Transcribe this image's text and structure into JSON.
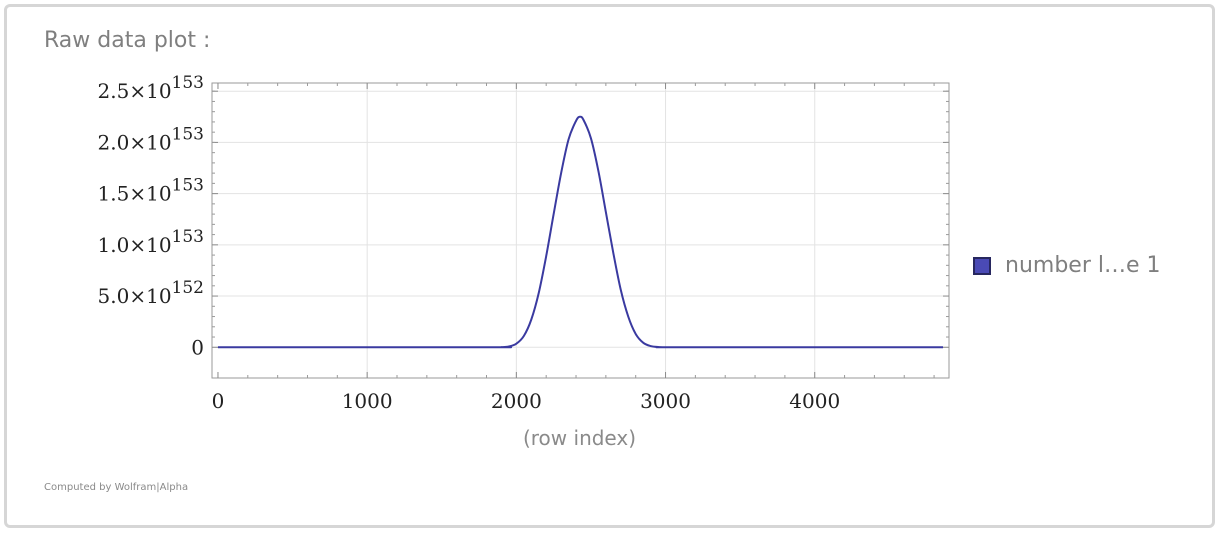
{
  "pod": {
    "title": "Raw data plot :",
    "footer": "Computed by Wolfram|Alpha"
  },
  "legend": {
    "label": "number l…e 1",
    "color": "#4a4ab5"
  },
  "chart_data": {
    "type": "line",
    "title": "",
    "xlabel": "(row index)",
    "ylabel": "",
    "xlim": [
      -40,
      4900
    ],
    "ylim": [
      -3e+152,
      2.58e+153
    ],
    "x_ticks": [
      {
        "value": 0,
        "label": "0"
      },
      {
        "value": 1000,
        "label": "1000"
      },
      {
        "value": 2000,
        "label": "2000"
      },
      {
        "value": 3000,
        "label": "3000"
      },
      {
        "value": 4000,
        "label": "4000"
      }
    ],
    "y_ticks": [
      {
        "value": 0,
        "mantissa": "0",
        "exponent": ""
      },
      {
        "value": 5e+152,
        "mantissa": "5.0×10",
        "exponent": "152"
      },
      {
        "value": 1e+153,
        "mantissa": "1.0×10",
        "exponent": "153"
      },
      {
        "value": 1.5e+153,
        "mantissa": "1.5×10",
        "exponent": "153"
      },
      {
        "value": 2e+153,
        "mantissa": "2.0×10",
        "exponent": "153"
      },
      {
        "value": 2.5e+153,
        "mantissa": "2.5×10",
        "exponent": "153"
      }
    ],
    "grid": true,
    "legend_position": "right",
    "series": [
      {
        "name": "number l…e 1",
        "color": "#3a3aa0",
        "x": [
          0,
          1800,
          1900,
          1950,
          2000,
          2050,
          2100,
          2150,
          2200,
          2250,
          2300,
          2350,
          2400,
          2425,
          2450,
          2500,
          2550,
          2600,
          2650,
          2700,
          2750,
          2800,
          2850,
          2900,
          2950,
          3000,
          3100,
          4860
        ],
        "y": [
          0,
          0,
          1.5e+150,
          8e+150,
          3.5e+151,
          1.1e+152,
          2.7e+152,
          5.3e+152,
          8.9e+152,
          1.3e+153,
          1.7e+153,
          2.03e+153,
          2.21e+153,
          2.25e+153,
          2.22e+153,
          2.04e+153,
          1.72e+153,
          1.32e+153,
          9.2e+152,
          5.6e+152,
          3e+152,
          1.3e+152,
          4.5e+151,
          1.2e+151,
          2.5e+150,
          2e+149,
          0,
          0
        ]
      }
    ]
  }
}
